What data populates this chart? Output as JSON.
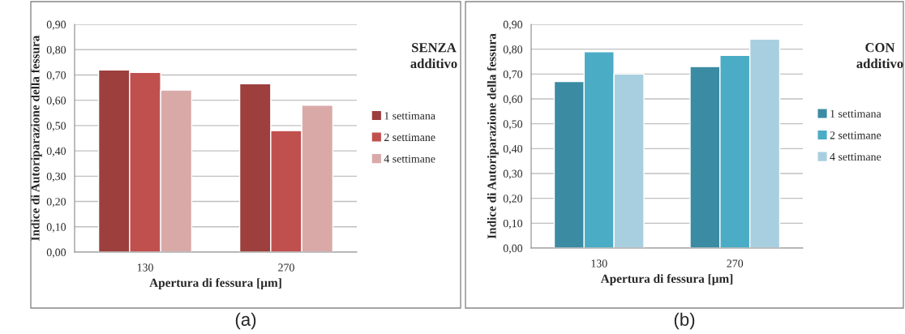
{
  "chart_data": [
    {
      "type": "bar",
      "categories": [
        "130",
        "270"
      ],
      "xlabel": "Apertura di fessura [µm]",
      "ylabel": "Indice di Autoriparazione della fessura",
      "series": [
        {
          "name": "1 settimana",
          "color": "#9c3f3d",
          "values": [
            0.72,
            0.665
          ]
        },
        {
          "name": "2 settimane",
          "color": "#c0504d",
          "values": [
            0.71,
            0.48
          ]
        },
        {
          "name": "4 settimane",
          "color": "#d9a9a8",
          "values": [
            0.64,
            0.58
          ]
        }
      ],
      "ylim": [
        0,
        0.9
      ],
      "yticks": [
        {
          "value": 0,
          "label": "0,00"
        },
        {
          "value": 0.1,
          "label": "0,10"
        },
        {
          "value": 0.2,
          "label": "0,20"
        },
        {
          "value": 0.3,
          "label": "0,30"
        },
        {
          "value": 0.4,
          "label": "0,40"
        },
        {
          "value": 0.5,
          "label": "0,50"
        },
        {
          "value": 0.6,
          "label": "0,60"
        },
        {
          "value": 0.7,
          "label": "0,70"
        },
        {
          "value": 0.8,
          "label": "0,80"
        },
        {
          "value": 0.9,
          "label": "0,90"
        }
      ],
      "grid": "y",
      "legend": "right",
      "annotations": [
        "SENZA\nadditivo",
        "(a)"
      ]
    },
    {
      "type": "bar",
      "categories": [
        "130",
        "270"
      ],
      "xlabel": "Apertura di fessura [µm]",
      "ylabel": "Indice di Autoriparazione della fessura",
      "series": [
        {
          "name": "1 settimana",
          "color": "#3b8ba3",
          "values": [
            0.67,
            0.73
          ]
        },
        {
          "name": "2 settimane",
          "color": "#4bacc6",
          "values": [
            0.79,
            0.775
          ]
        },
        {
          "name": "4 settimane",
          "color": "#a8cfdf",
          "values": [
            0.7,
            0.84
          ]
        }
      ],
      "ylim": [
        0,
        0.9
      ],
      "yticks": [
        {
          "value": 0,
          "label": "0,00"
        },
        {
          "value": 0.1,
          "label": "0,10"
        },
        {
          "value": 0.2,
          "label": "0,20"
        },
        {
          "value": 0.3,
          "label": "0,30"
        },
        {
          "value": 0.4,
          "label": "0,40"
        },
        {
          "value": 0.5,
          "label": "0,50"
        },
        {
          "value": 0.6,
          "label": "0,60"
        },
        {
          "value": 0.7,
          "label": "0,70"
        },
        {
          "value": 0.8,
          "label": "0,80"
        },
        {
          "value": 0.9,
          "label": "0,90"
        }
      ],
      "grid": "y",
      "legend": "right",
      "annotations": [
        "CON\nadditivo",
        "(b)"
      ]
    }
  ]
}
